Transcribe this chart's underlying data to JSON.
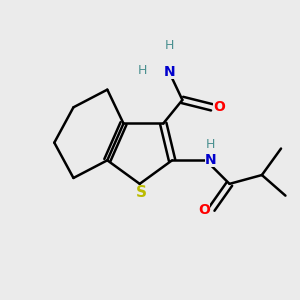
{
  "background_color": "#ebebeb",
  "atom_colors": {
    "C": "#000000",
    "N": "#0000cc",
    "O": "#ff0000",
    "S": "#bbbb00",
    "H": "#4a9090"
  },
  "figsize": [
    3.0,
    3.0
  ],
  "dpi": 100
}
